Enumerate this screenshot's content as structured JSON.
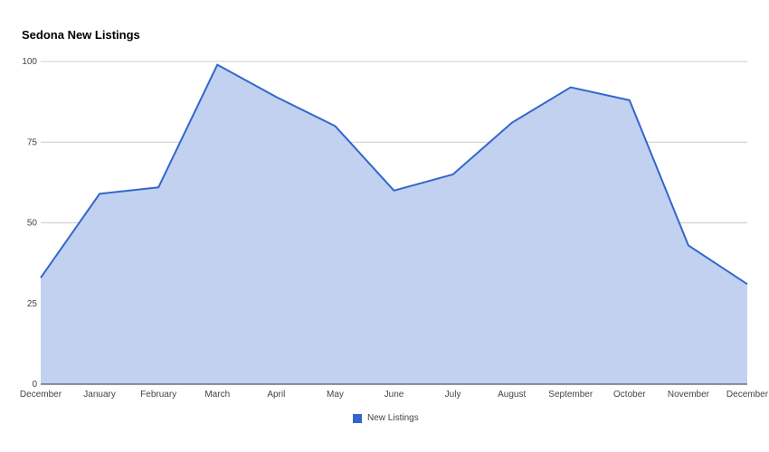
{
  "chart_data": {
    "type": "area",
    "title": "Sedona New Listings",
    "xlabel": "",
    "ylabel": "",
    "categories": [
      "December",
      "January",
      "February",
      "March",
      "April",
      "May",
      "June",
      "July",
      "August",
      "September",
      "October",
      "November",
      "December"
    ],
    "series": [
      {
        "name": "New Listings",
        "values": [
          33,
          59,
          61,
          99,
          89,
          80,
          60,
          65,
          81,
          92,
          88,
          43,
          31
        ],
        "line_color": "#3366cc",
        "fill_color": "#c2d1f0"
      }
    ],
    "ylim": [
      0,
      100
    ],
    "y_ticks": [
      "0",
      "25",
      "50",
      "75",
      "100"
    ],
    "y_tick_values": [
      0,
      25,
      50,
      75,
      100
    ],
    "grid": true,
    "legend_position": "bottom"
  }
}
